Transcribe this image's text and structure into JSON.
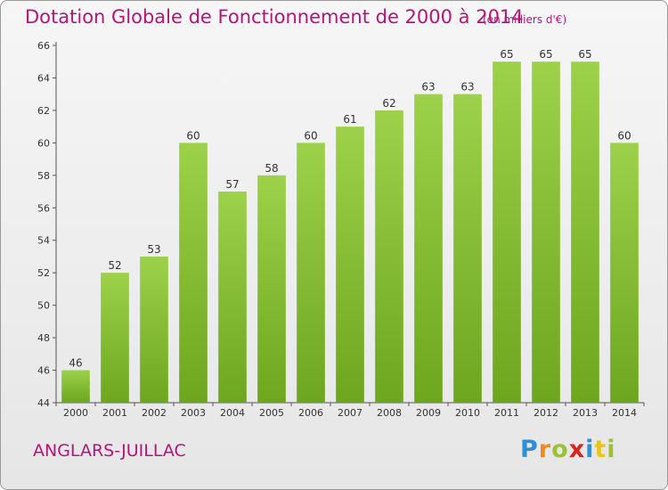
{
  "chart_data": {
    "type": "bar",
    "title": "Dotation Globale de Fonctionnement de 2000 à 2014",
    "subtitle": "(en milliers d'€)",
    "categories": [
      "2000",
      "2001",
      "2002",
      "2003",
      "2004",
      "2005",
      "2006",
      "2007",
      "2008",
      "2009",
      "2010",
      "2011",
      "2012",
      "2013",
      "2014"
    ],
    "values": [
      46,
      52,
      53,
      60,
      57,
      58,
      60,
      61,
      62,
      63,
      63,
      65,
      65,
      65,
      60
    ],
    "ylim": [
      44,
      66
    ],
    "yticks": [
      44,
      46,
      48,
      50,
      52,
      54,
      56,
      58,
      60,
      62,
      64,
      66
    ],
    "grid": false,
    "bar_color": "#8cc63f"
  },
  "footer": {
    "commune": "ANGLARS-JUILLAC",
    "logo": "Proxiti"
  }
}
